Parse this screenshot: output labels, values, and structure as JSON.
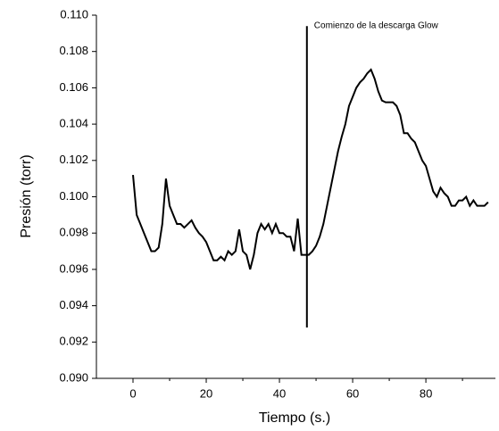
{
  "chart_data": {
    "type": "line",
    "x_label": "Tiempo (s.)",
    "y_label": "Presión (torr)",
    "annotation": {
      "text": "Comienzo de la descarga Glow",
      "x": 47.5,
      "y_range": [
        0.0928,
        0.1094
      ]
    },
    "x": [
      0,
      1,
      2,
      3,
      4,
      5,
      6,
      7,
      8,
      9,
      10,
      11,
      12,
      13,
      14,
      15,
      16,
      17,
      18,
      19,
      20,
      21,
      22,
      23,
      24,
      25,
      26,
      27,
      28,
      29,
      30,
      31,
      32,
      33,
      34,
      35,
      36,
      37,
      38,
      39,
      40,
      41,
      42,
      43,
      44,
      45,
      46,
      47,
      48,
      49,
      50,
      51,
      52,
      53,
      54,
      55,
      56,
      57,
      58,
      59,
      60,
      61,
      62,
      63,
      64,
      65,
      66,
      67,
      68,
      69,
      70,
      71,
      72,
      73,
      74,
      75,
      76,
      77,
      78,
      79,
      80,
      81,
      82,
      83,
      84,
      85,
      86,
      87,
      88,
      89,
      90,
      91,
      92,
      93,
      94,
      95,
      96,
      97
    ],
    "values": [
      0.1012,
      0.099,
      0.0985,
      0.098,
      0.0975,
      0.097,
      0.097,
      0.0972,
      0.0985,
      0.101,
      0.0995,
      0.099,
      0.0985,
      0.0985,
      0.0983,
      0.0985,
      0.0987,
      0.0983,
      0.098,
      0.0978,
      0.0975,
      0.097,
      0.0965,
      0.0965,
      0.0967,
      0.0965,
      0.097,
      0.0968,
      0.097,
      0.0982,
      0.097,
      0.0968,
      0.096,
      0.0968,
      0.098,
      0.0985,
      0.0982,
      0.0985,
      0.098,
      0.0985,
      0.098,
      0.098,
      0.0978,
      0.0978,
      0.097,
      0.0988,
      0.0968,
      0.0968,
      0.0968,
      0.097,
      0.0973,
      0.0978,
      0.0985,
      0.0995,
      0.1005,
      0.1015,
      0.1025,
      0.1033,
      0.104,
      0.105,
      0.1055,
      0.106,
      0.1063,
      0.1065,
      0.1068,
      0.107,
      0.1065,
      0.1058,
      0.1053,
      0.1052,
      0.1052,
      0.1052,
      0.105,
      0.1045,
      0.1035,
      0.1035,
      0.1032,
      0.103,
      0.1025,
      0.102,
      0.1017,
      0.101,
      0.1003,
      0.1,
      0.1005,
      0.1002,
      0.1,
      0.0995,
      0.0995,
      0.0998,
      0.0998,
      0.1,
      0.0995,
      0.0998,
      0.0995,
      0.0995,
      0.0995,
      0.0997
    ],
    "color": "#000000",
    "xlim": [
      -10,
      99
    ],
    "xticks": [
      0,
      20,
      40,
      60,
      80
    ],
    "x_minor_ticks": [
      10,
      30,
      50,
      70,
      90
    ],
    "ylim": [
      0.09,
      0.11
    ],
    "yticks": [
      {
        "value": 0.09,
        "label": "0.090"
      },
      0.092,
      0.094,
      0.096,
      0.098,
      {
        "value": 0.1,
        "label": "0.100"
      },
      0.102,
      0.104,
      0.106,
      0.108,
      {
        "value": 0.11,
        "label": "0.110"
      }
    ]
  }
}
